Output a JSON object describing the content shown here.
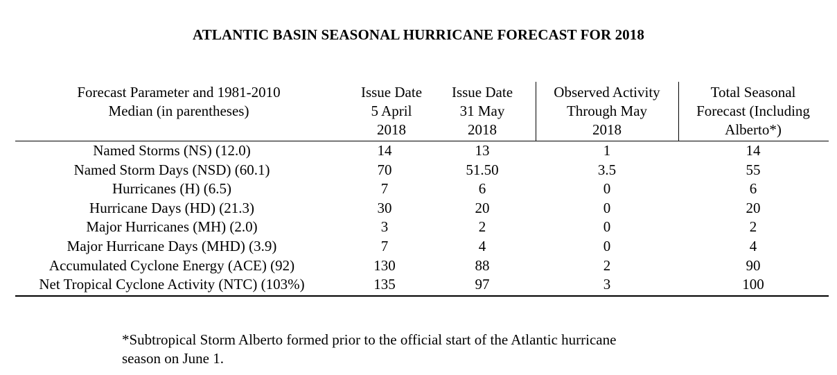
{
  "title": "ATLANTIC BASIN SEASONAL HURRICANE FORECAST FOR 2018",
  "columns": [
    {
      "lines": [
        "Forecast Parameter and 1981-2010",
        "Median (in parentheses)"
      ]
    },
    {
      "lines": [
        "Issue Date",
        "5 April",
        "2018"
      ]
    },
    {
      "lines": [
        "Issue Date",
        "31 May",
        "2018"
      ]
    },
    {
      "lines": [
        "Observed Activity",
        "Through May",
        "2018"
      ]
    },
    {
      "lines": [
        "Total Seasonal",
        "Forecast (Including",
        "Alberto*)"
      ]
    }
  ],
  "rows": [
    {
      "parameter": "Named Storms (NS) (12.0)",
      "april": "14",
      "may": "13",
      "observed": "1",
      "total": "14"
    },
    {
      "parameter": "Named Storm Days (NSD) (60.1)",
      "april": "70",
      "may": "51.50",
      "observed": "3.5",
      "total": "55"
    },
    {
      "parameter": "Hurricanes (H) (6.5)",
      "april": "7",
      "may": "6",
      "observed": "0",
      "total": "6"
    },
    {
      "parameter": "Hurricane Days (HD) (21.3)",
      "april": "30",
      "may": "20",
      "observed": "0",
      "total": "20"
    },
    {
      "parameter": "Major Hurricanes (MH) (2.0)",
      "april": "3",
      "may": "2",
      "observed": "0",
      "total": "2"
    },
    {
      "parameter": "Major Hurricane Days (MHD) (3.9)",
      "april": "7",
      "may": "4",
      "observed": "0",
      "total": "4"
    },
    {
      "parameter": "Accumulated Cyclone Energy (ACE) (92)",
      "april": "130",
      "may": "88",
      "observed": "2",
      "total": "90"
    },
    {
      "parameter": "Net Tropical Cyclone Activity (NTC) (103%)",
      "april": "135",
      "may": "97",
      "observed": "3",
      "total": "100"
    }
  ],
  "footnote": {
    "line1": "*Subtropical Storm Alberto formed prior to the official start of the Atlantic hurricane",
    "line2": "season on June 1."
  }
}
